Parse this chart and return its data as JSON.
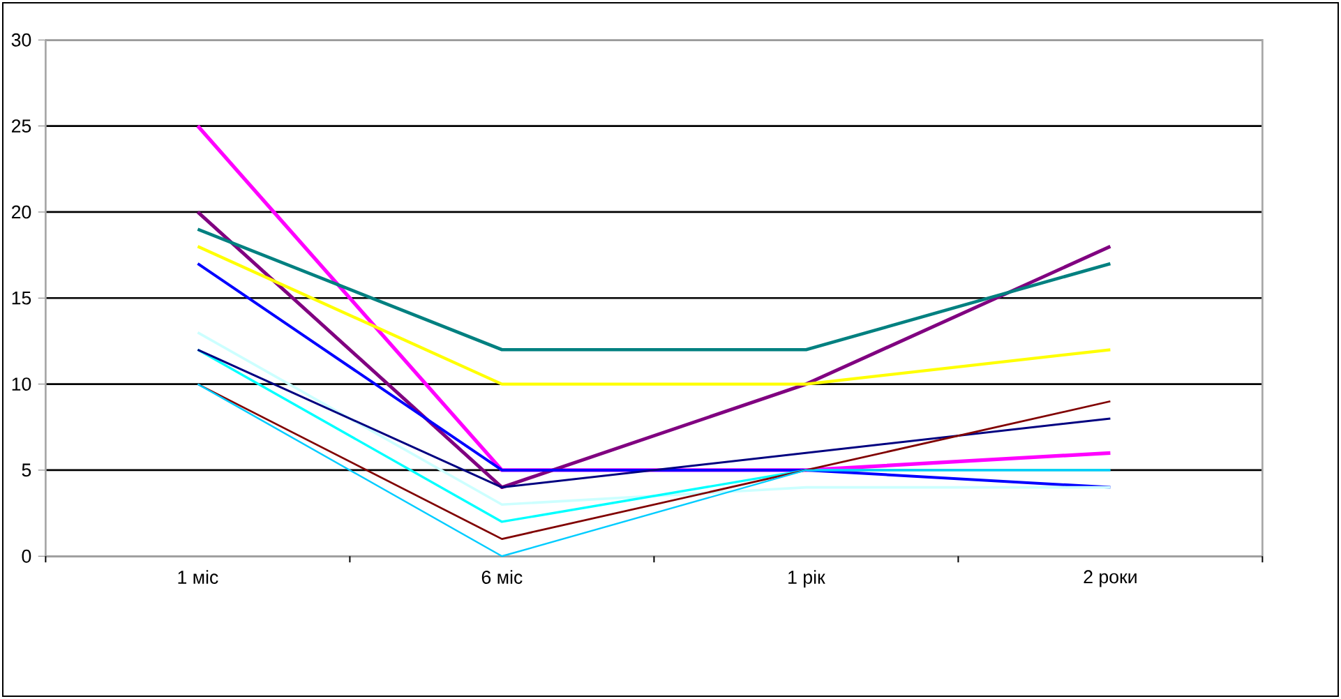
{
  "chart_data": {
    "type": "line",
    "categories": [
      "1 міс",
      "6 міс",
      "1 рік",
      "2 роки"
    ],
    "ylim": [
      0,
      30
    ],
    "yticks": [
      0,
      5,
      10,
      15,
      20,
      25,
      30
    ],
    "grid": "y",
    "marker": "none",
    "line_style": "solid",
    "series": [
      {
        "color": "#ff00ff",
        "values": [
          25,
          5,
          5,
          6
        ]
      },
      {
        "color": "#800080",
        "values": [
          20,
          4,
          10,
          18
        ]
      },
      {
        "color": "#008080",
        "values": [
          19,
          12,
          12,
          17
        ]
      },
      {
        "color": "#ffff00",
        "values": [
          18,
          10,
          10,
          12
        ]
      },
      {
        "color": "#0000ff",
        "values": [
          17,
          5,
          5,
          4
        ]
      },
      {
        "color": "#ccffff",
        "values": [
          13,
          3,
          4,
          4
        ]
      },
      {
        "color": "#00ffff",
        "values": [
          12,
          2,
          5,
          5
        ]
      },
      {
        "color": "#000080",
        "values": [
          12,
          4,
          6,
          8
        ]
      },
      {
        "color": "#800000",
        "values": [
          10,
          1,
          5,
          9
        ]
      },
      {
        "color": "#00ccff",
        "values": [
          10,
          0,
          5,
          5
        ]
      }
    ]
  }
}
